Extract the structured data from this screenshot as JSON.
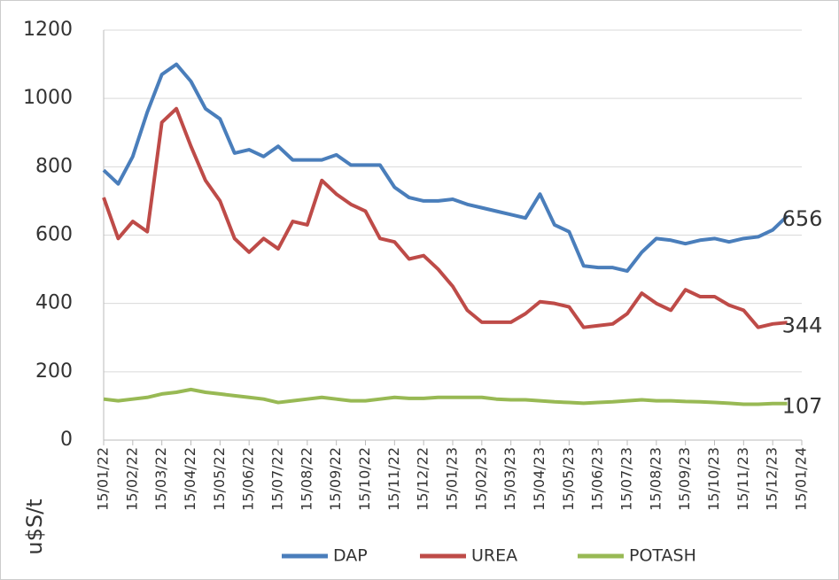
{
  "chart_data": {
    "type": "line",
    "y_label": "u$S/t",
    "categories": [
      "15/01/22",
      null,
      "15/02/22",
      null,
      "15/03/22",
      null,
      "15/04/22",
      null,
      "15/05/22",
      null,
      "15/06/22",
      null,
      "15/07/22",
      null,
      "15/08/22",
      null,
      "15/09/22",
      null,
      "15/10/22",
      null,
      "15/11/22",
      null,
      "15/12/22",
      null,
      "15/01/23",
      null,
      "15/02/23",
      null,
      "15/03/23",
      null,
      "15/04/23",
      null,
      "15/05/23",
      null,
      "15/06/23",
      null,
      "15/07/23",
      null,
      "15/08/23",
      null,
      "15/09/23",
      null,
      "15/10/23",
      null,
      "15/11/23",
      null,
      "15/12/23",
      null,
      "15/01/24"
    ],
    "series": [
      {
        "name": "DAP",
        "color": "#4a7ebb",
        "values": [
          790,
          750,
          830,
          960,
          1070,
          1100,
          1050,
          970,
          940,
          840,
          850,
          830,
          860,
          820,
          820,
          820,
          835,
          805,
          805,
          805,
          740,
          710,
          700,
          700,
          705,
          690,
          680,
          670,
          660,
          650,
          720,
          630,
          610,
          510,
          505,
          505,
          495,
          550,
          590,
          585,
          575,
          585,
          590,
          580,
          590,
          595,
          615,
          656,
          null
        ]
      },
      {
        "name": "UREA",
        "color": "#be4b48",
        "values": [
          710,
          590,
          640,
          610,
          930,
          970,
          860,
          760,
          700,
          590,
          550,
          590,
          560,
          640,
          630,
          760,
          720,
          690,
          670,
          590,
          580,
          530,
          540,
          500,
          450,
          380,
          345,
          345,
          345,
          370,
          405,
          400,
          390,
          330,
          335,
          340,
          370,
          430,
          400,
          380,
          440,
          420,
          420,
          395,
          380,
          330,
          340,
          344,
          null
        ]
      },
      {
        "name": "POTASH",
        "color": "#98b954",
        "values": [
          120,
          115,
          120,
          125,
          135,
          140,
          148,
          140,
          135,
          130,
          125,
          120,
          110,
          115,
          120,
          125,
          120,
          115,
          115,
          120,
          125,
          122,
          122,
          125,
          125,
          125,
          125,
          120,
          118,
          118,
          115,
          112,
          110,
          108,
          110,
          112,
          115,
          118,
          115,
          115,
          113,
          112,
          110,
          108,
          105,
          105,
          107,
          107,
          null
        ]
      }
    ],
    "ylim": [
      0,
      1200
    ],
    "yticks": [
      0,
      200,
      400,
      600,
      800,
      1000,
      1200
    ],
    "grid": true
  }
}
